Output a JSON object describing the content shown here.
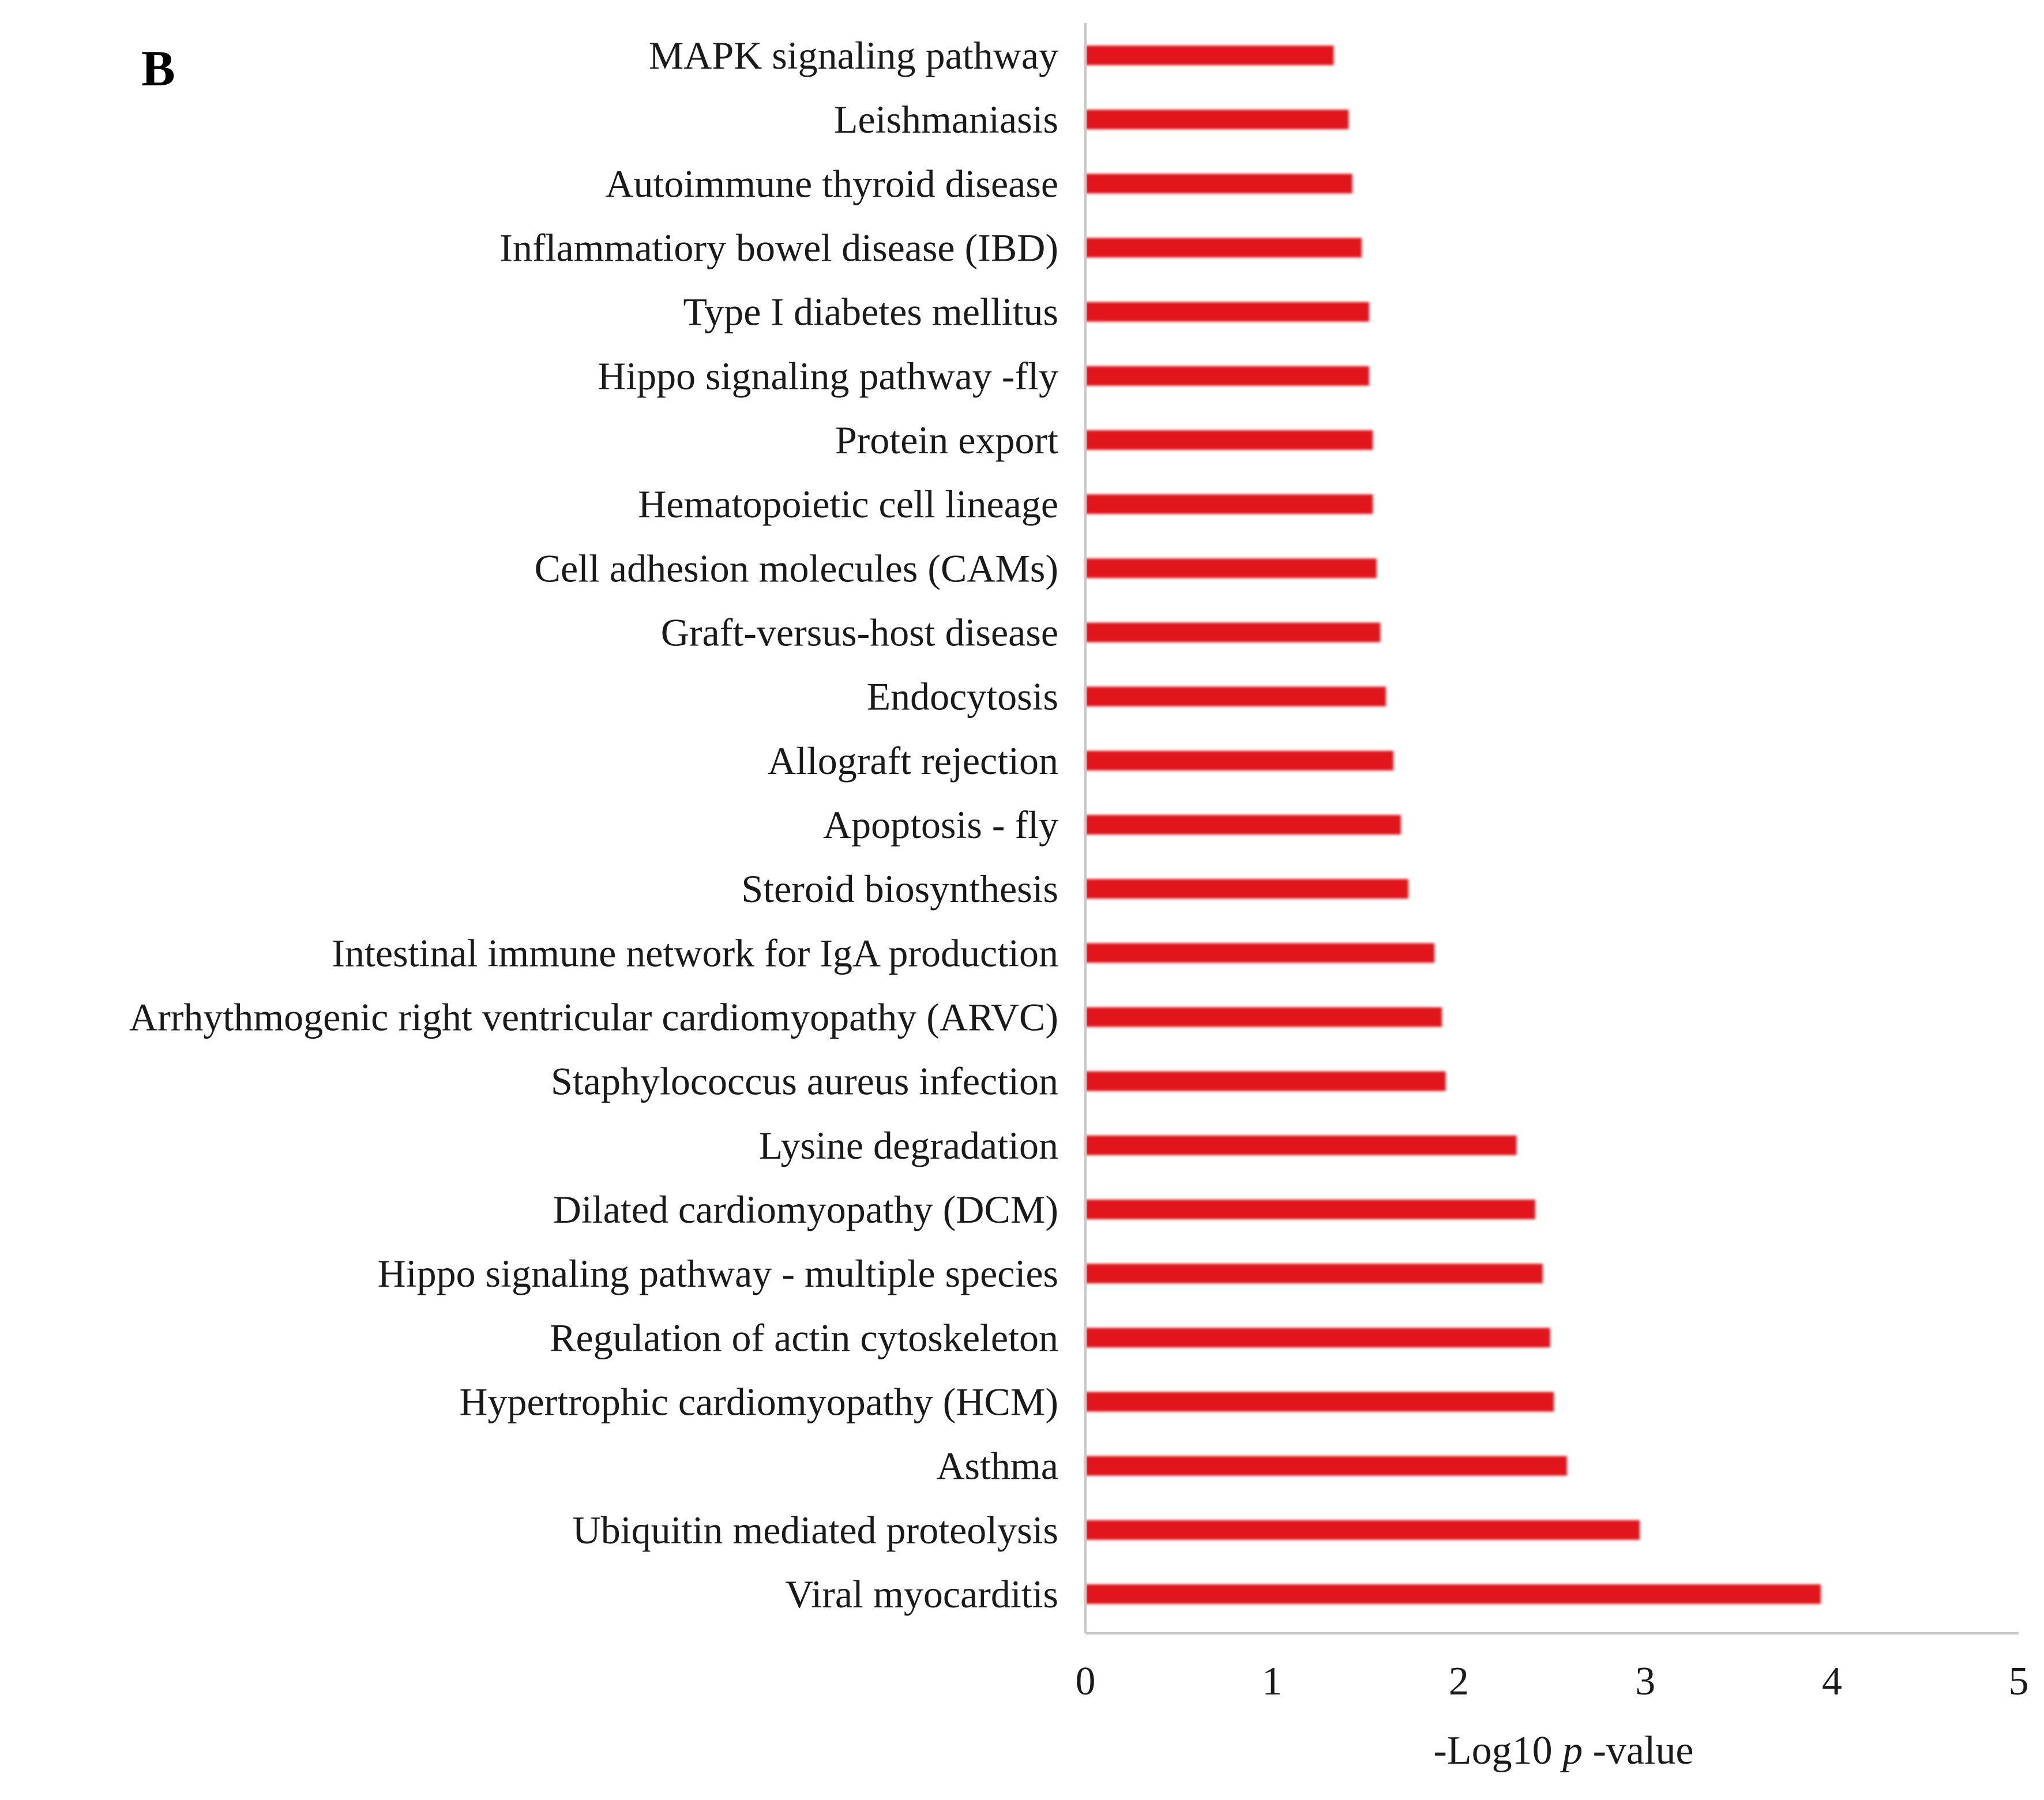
{
  "chart_data": {
    "type": "bar",
    "orientation": "horizontal",
    "panel_label": "B",
    "categories": [
      "MAPK signaling pathway",
      "Leishmaniasis",
      "Autoimmune thyroid disease",
      "Inflammatiory bowel disease (IBD)",
      "Type I diabetes mellitus",
      "Hippo signaling pathway -fly",
      "Protein export",
      "Hematopoietic cell lineage",
      "Cell adhesion molecules (CAMs)",
      "Graft-versus-host disease",
      "Endocytosis",
      "Allograft rejection",
      "Apoptosis - fly",
      "Steroid biosynthesis",
      "Intestinal immune network for IgA production",
      "Arrhythmogenic right ventricular cardiomyopathy (ARVC)",
      "Staphylococcus aureus infection",
      "Lysine degradation",
      "Dilated cardiomyopathy (DCM)",
      "Hippo signaling pathway - multiple species",
      "Regulation of actin cytoskeleton",
      "Hypertrophic cardiomyopathy (HCM)",
      "Asthma",
      "Ubiquitin mediated proteolysis",
      "Viral myocarditis"
    ],
    "values": [
      1.33,
      1.41,
      1.43,
      1.48,
      1.52,
      1.52,
      1.54,
      1.54,
      1.56,
      1.58,
      1.61,
      1.65,
      1.69,
      1.73,
      1.87,
      1.91,
      1.93,
      2.31,
      2.41,
      2.45,
      2.49,
      2.51,
      2.58,
      2.97,
      3.94
    ],
    "xlabel": {
      "prefix": "-Log10 ",
      "italic": "p",
      "suffix": " -value"
    },
    "xlim": [
      0,
      5
    ],
    "xticks": [
      "0",
      "1",
      "2",
      "3",
      "4",
      "5"
    ],
    "bar_color": "#e0121b",
    "axis_color": "#c8c8c8",
    "grid": false,
    "legend": "none"
  }
}
